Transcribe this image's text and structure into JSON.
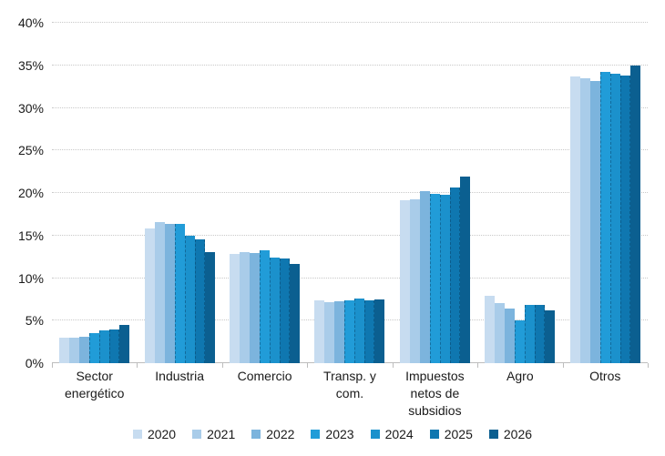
{
  "chart_data": {
    "type": "bar",
    "title": "",
    "xlabel": "",
    "ylabel": "",
    "ylim": [
      0,
      40
    ],
    "ytick_step": 5,
    "ytick_labels": [
      "0%",
      "5%",
      "10%",
      "15%",
      "20%",
      "25%",
      "30%",
      "35%",
      "40%"
    ],
    "grid": true,
    "legend_position": "bottom",
    "categories": [
      "Sector energético",
      "Industria",
      "Comercio",
      "Transp. y com.",
      "Impuestos netos de subsidios",
      "Agro",
      "Otros"
    ],
    "series": [
      {
        "name": "2020",
        "color": "#c7dcf0",
        "values": [
          3.0,
          15.8,
          12.8,
          7.4,
          19.1,
          7.9,
          33.7
        ]
      },
      {
        "name": "2021",
        "color": "#a9cce9",
        "values": [
          3.0,
          16.6,
          13.0,
          7.2,
          19.3,
          7.1,
          33.5
        ]
      },
      {
        "name": "2022",
        "color": "#7cb4dd",
        "values": [
          3.1,
          16.4,
          12.9,
          7.3,
          20.2,
          6.4,
          33.2
        ]
      },
      {
        "name": "2023",
        "color": "#219cd8",
        "values": [
          3.5,
          16.4,
          13.3,
          7.4,
          19.9,
          5.0,
          34.2
        ]
      },
      {
        "name": "2024",
        "color": "#1b91cc",
        "values": [
          3.9,
          15.0,
          12.4,
          7.6,
          19.8,
          6.8,
          34.0
        ]
      },
      {
        "name": "2025",
        "color": "#0f77b0",
        "values": [
          4.0,
          14.6,
          12.3,
          7.4,
          20.6,
          6.8,
          33.8
        ]
      },
      {
        "name": "2026",
        "color": "#0b5f90",
        "values": [
          4.5,
          13.0,
          11.7,
          7.5,
          21.9,
          6.2,
          35.0
        ]
      }
    ],
    "colors": {
      "gridline": "#c9c9c9",
      "axis_line": "#bdbdbd",
      "text": "#1a1a1a"
    }
  }
}
